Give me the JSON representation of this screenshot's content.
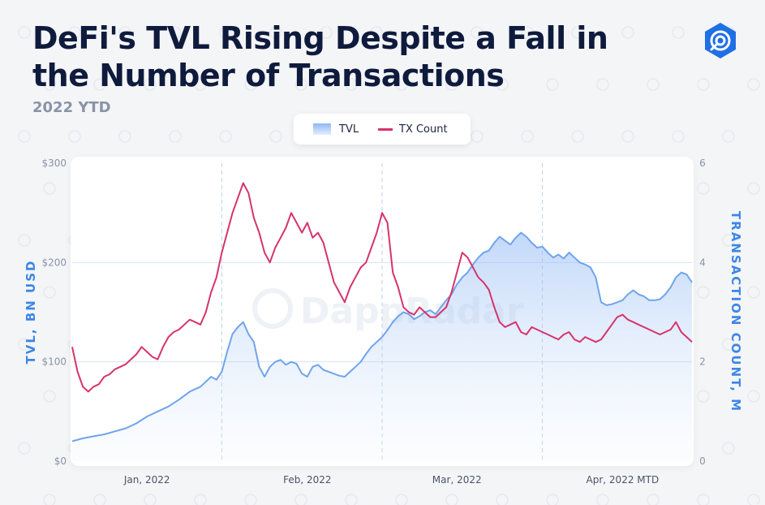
{
  "title": "DeFi's TVL Rising Despite a Fall in the Number of Transactions",
  "subtitle": "2022 YTD",
  "watermark": "DappRadar",
  "legend": {
    "tvl": "TVL",
    "tx": "TX Count"
  },
  "colors": {
    "tvl": "#6fa4ec",
    "tx": "#d6336c",
    "title": "#0f1b3d",
    "axis_title": "#3d86e6",
    "logo": "#1f6fe5"
  },
  "chart_data": {
    "type": "line",
    "title": "DeFi's TVL Rising Despite a Fall in the Number of Transactions",
    "subtitle": "2022 YTD",
    "xlabel": "",
    "ylabel": "TVL, BN USD",
    "y2label": "TRANSACTION COUNT, M",
    "ylim": [
      0,
      300
    ],
    "y2lim": [
      0,
      6
    ],
    "yticks": [
      {
        "value": 0,
        "label": "$0"
      },
      {
        "value": 100,
        "label": "$100"
      },
      {
        "value": 200,
        "label": "$200"
      },
      {
        "value": 300,
        "label": "$300"
      }
    ],
    "y2ticks": [
      {
        "value": 0,
        "label": "0"
      },
      {
        "value": 2,
        "label": "2"
      },
      {
        "value": 4,
        "label": "4"
      },
      {
        "value": 6,
        "label": "6"
      }
    ],
    "x_range": [
      0,
      116
    ],
    "x_ticks": [
      {
        "x": 14,
        "label": "Jan, 2022"
      },
      {
        "x": 44,
        "label": "Feb, 2022"
      },
      {
        "x": 72,
        "label": "Mar, 2022"
      },
      {
        "x": 103,
        "label": "Apr, 2022 MTD"
      }
    ],
    "x_dividers": [
      28,
      58,
      88
    ],
    "grid": true,
    "legend_position": "top-center",
    "series": [
      {
        "name": "TVL",
        "axis": "left",
        "style": "area",
        "points": [
          [
            0,
            20
          ],
          [
            2,
            23
          ],
          [
            4,
            25
          ],
          [
            6,
            27
          ],
          [
            8,
            30
          ],
          [
            10,
            33
          ],
          [
            12,
            38
          ],
          [
            14,
            45
          ],
          [
            16,
            50
          ],
          [
            18,
            55
          ],
          [
            20,
            62
          ],
          [
            22,
            70
          ],
          [
            24,
            75
          ],
          [
            25,
            80
          ],
          [
            26,
            85
          ],
          [
            27,
            82
          ],
          [
            28,
            90
          ],
          [
            29,
            110
          ],
          [
            30,
            128
          ],
          [
            31,
            135
          ],
          [
            32,
            140
          ],
          [
            33,
            128
          ],
          [
            34,
            120
          ],
          [
            35,
            95
          ],
          [
            36,
            85
          ],
          [
            37,
            95
          ],
          [
            38,
            100
          ],
          [
            39,
            102
          ],
          [
            40,
            97
          ],
          [
            41,
            100
          ],
          [
            42,
            98
          ],
          [
            43,
            88
          ],
          [
            44,
            85
          ],
          [
            45,
            95
          ],
          [
            46,
            97
          ],
          [
            47,
            92
          ],
          [
            48,
            90
          ],
          [
            49,
            88
          ],
          [
            50,
            86
          ],
          [
            51,
            85
          ],
          [
            52,
            90
          ],
          [
            53,
            95
          ],
          [
            54,
            100
          ],
          [
            55,
            108
          ],
          [
            56,
            115
          ],
          [
            57,
            120
          ],
          [
            58,
            125
          ],
          [
            59,
            132
          ],
          [
            60,
            140
          ],
          [
            61,
            146
          ],
          [
            62,
            150
          ],
          [
            63,
            148
          ],
          [
            64,
            143
          ],
          [
            65,
            146
          ],
          [
            66,
            150
          ],
          [
            67,
            152
          ],
          [
            68,
            148
          ],
          [
            69,
            155
          ],
          [
            70,
            162
          ],
          [
            71,
            168
          ],
          [
            72,
            178
          ],
          [
            73,
            185
          ],
          [
            74,
            190
          ],
          [
            75,
            198
          ],
          [
            76,
            205
          ],
          [
            77,
            210
          ],
          [
            78,
            212
          ],
          [
            79,
            220
          ],
          [
            80,
            226
          ],
          [
            81,
            222
          ],
          [
            82,
            218
          ],
          [
            83,
            225
          ],
          [
            84,
            230
          ],
          [
            85,
            226
          ],
          [
            86,
            220
          ],
          [
            87,
            215
          ],
          [
            88,
            216
          ],
          [
            89,
            210
          ],
          [
            90,
            205
          ],
          [
            91,
            208
          ],
          [
            92,
            204
          ],
          [
            93,
            210
          ],
          [
            94,
            205
          ],
          [
            95,
            200
          ],
          [
            96,
            198
          ],
          [
            97,
            195
          ],
          [
            98,
            185
          ],
          [
            99,
            160
          ],
          [
            100,
            157
          ],
          [
            101,
            158
          ],
          [
            102,
            160
          ],
          [
            103,
            162
          ],
          [
            104,
            168
          ],
          [
            105,
            172
          ],
          [
            106,
            168
          ],
          [
            107,
            166
          ],
          [
            108,
            162
          ],
          [
            109,
            162
          ],
          [
            110,
            163
          ],
          [
            111,
            168
          ],
          [
            112,
            175
          ],
          [
            113,
            185
          ],
          [
            114,
            190
          ],
          [
            115,
            188
          ],
          [
            116,
            180
          ]
        ]
      },
      {
        "name": "TX Count",
        "axis": "right",
        "style": "line",
        "points": [
          [
            0,
            2.3
          ],
          [
            1,
            1.8
          ],
          [
            2,
            1.5
          ],
          [
            3,
            1.4
          ],
          [
            4,
            1.5
          ],
          [
            5,
            1.55
          ],
          [
            6,
            1.7
          ],
          [
            7,
            1.75
          ],
          [
            8,
            1.85
          ],
          [
            9,
            1.9
          ],
          [
            10,
            1.95
          ],
          [
            11,
            2.05
          ],
          [
            12,
            2.15
          ],
          [
            13,
            2.3
          ],
          [
            14,
            2.2
          ],
          [
            15,
            2.1
          ],
          [
            16,
            2.05
          ],
          [
            17,
            2.3
          ],
          [
            18,
            2.5
          ],
          [
            19,
            2.6
          ],
          [
            20,
            2.65
          ],
          [
            21,
            2.75
          ],
          [
            22,
            2.85
          ],
          [
            23,
            2.8
          ],
          [
            24,
            2.75
          ],
          [
            25,
            3.0
          ],
          [
            26,
            3.4
          ],
          [
            27,
            3.7
          ],
          [
            28,
            4.2
          ],
          [
            29,
            4.6
          ],
          [
            30,
            5.0
          ],
          [
            31,
            5.3
          ],
          [
            32,
            5.6
          ],
          [
            33,
            5.4
          ],
          [
            34,
            4.9
          ],
          [
            35,
            4.6
          ],
          [
            36,
            4.2
          ],
          [
            37,
            4.0
          ],
          [
            38,
            4.3
          ],
          [
            39,
            4.5
          ],
          [
            40,
            4.7
          ],
          [
            41,
            5.0
          ],
          [
            42,
            4.8
          ],
          [
            43,
            4.6
          ],
          [
            44,
            4.8
          ],
          [
            45,
            4.5
          ],
          [
            46,
            4.6
          ],
          [
            47,
            4.4
          ],
          [
            48,
            4.0
          ],
          [
            49,
            3.6
          ],
          [
            50,
            3.4
          ],
          [
            51,
            3.2
          ],
          [
            52,
            3.5
          ],
          [
            53,
            3.7
          ],
          [
            54,
            3.9
          ],
          [
            55,
            4.0
          ],
          [
            56,
            4.3
          ],
          [
            57,
            4.6
          ],
          [
            58,
            5.0
          ],
          [
            59,
            4.8
          ],
          [
            60,
            3.8
          ],
          [
            61,
            3.5
          ],
          [
            62,
            3.1
          ],
          [
            63,
            3.0
          ],
          [
            64,
            2.95
          ],
          [
            65,
            3.1
          ],
          [
            66,
            3.0
          ],
          [
            67,
            2.9
          ],
          [
            68,
            2.9
          ],
          [
            69,
            3.0
          ],
          [
            70,
            3.1
          ],
          [
            71,
            3.4
          ],
          [
            72,
            3.8
          ],
          [
            73,
            4.2
          ],
          [
            74,
            4.1
          ],
          [
            75,
            3.9
          ],
          [
            76,
            3.7
          ],
          [
            77,
            3.6
          ],
          [
            78,
            3.45
          ],
          [
            79,
            3.1
          ],
          [
            80,
            2.8
          ],
          [
            81,
            2.7
          ],
          [
            82,
            2.75
          ],
          [
            83,
            2.8
          ],
          [
            84,
            2.6
          ],
          [
            85,
            2.55
          ],
          [
            86,
            2.7
          ],
          [
            87,
            2.65
          ],
          [
            88,
            2.6
          ],
          [
            89,
            2.55
          ],
          [
            90,
            2.5
          ],
          [
            91,
            2.45
          ],
          [
            92,
            2.55
          ],
          [
            93,
            2.6
          ],
          [
            94,
            2.45
          ],
          [
            95,
            2.4
          ],
          [
            96,
            2.5
          ],
          [
            97,
            2.45
          ],
          [
            98,
            2.4
          ],
          [
            99,
            2.45
          ],
          [
            100,
            2.6
          ],
          [
            101,
            2.75
          ],
          [
            102,
            2.9
          ],
          [
            103,
            2.95
          ],
          [
            104,
            2.85
          ],
          [
            105,
            2.8
          ],
          [
            106,
            2.75
          ],
          [
            107,
            2.7
          ],
          [
            108,
            2.65
          ],
          [
            109,
            2.6
          ],
          [
            110,
            2.55
          ],
          [
            111,
            2.6
          ],
          [
            112,
            2.65
          ],
          [
            113,
            2.8
          ],
          [
            114,
            2.6
          ],
          [
            115,
            2.5
          ],
          [
            116,
            2.4
          ]
        ]
      }
    ]
  }
}
